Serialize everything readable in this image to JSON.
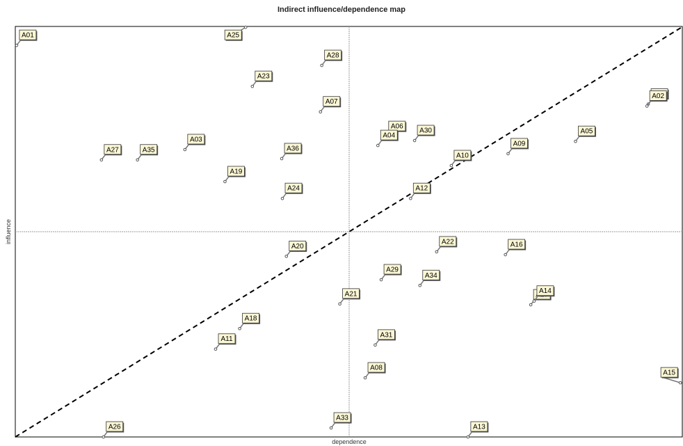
{
  "chart_data": {
    "type": "scatter",
    "title": "Indirect influence/dependence map",
    "xlabel": "dependence",
    "ylabel": "influence",
    "xlim": [
      0,
      100
    ],
    "ylim": [
      0,
      100
    ],
    "midlines": {
      "x": 50,
      "y": 50
    },
    "diagonal": true,
    "grid": false,
    "colors": {
      "axes": "#000000",
      "midline": "#999999",
      "diagonal": "#000000",
      "label_fill": "#fbf7d5",
      "point": "#555555"
    },
    "points": [
      {
        "label": "A01",
        "x": 0.2,
        "y": 95.4
      },
      {
        "label": "A25",
        "x": 34.5,
        "y": 99.8
      },
      {
        "label": "A28",
        "x": 45.9,
        "y": 90.5
      },
      {
        "label": "A23",
        "x": 35.5,
        "y": 85.4
      },
      {
        "label": "A07",
        "x": 45.7,
        "y": 79.2
      },
      {
        "label": "A32",
        "x": 94.8,
        "y": 81.1
      },
      {
        "label": "A02",
        "x": 94.6,
        "y": 80.6
      },
      {
        "label": "A06",
        "x": 55.5,
        "y": 73.2
      },
      {
        "label": "A30",
        "x": 59.8,
        "y": 72.2
      },
      {
        "label": "A04",
        "x": 54.3,
        "y": 71.0
      },
      {
        "label": "A05",
        "x": 83.9,
        "y": 72.0
      },
      {
        "label": "A09",
        "x": 73.8,
        "y": 69.0
      },
      {
        "label": "A10",
        "x": 65.3,
        "y": 66.1
      },
      {
        "label": "A27",
        "x": 12.9,
        "y": 67.5
      },
      {
        "label": "A35",
        "x": 18.3,
        "y": 67.5
      },
      {
        "label": "A03",
        "x": 25.4,
        "y": 70.0
      },
      {
        "label": "A36",
        "x": 39.9,
        "y": 67.8
      },
      {
        "label": "A19",
        "x": 31.4,
        "y": 62.2
      },
      {
        "label": "A24",
        "x": 40.0,
        "y": 58.1
      },
      {
        "label": "A12",
        "x": 59.2,
        "y": 58.1
      },
      {
        "label": "A20",
        "x": 40.6,
        "y": 44.0
      },
      {
        "label": "A22",
        "x": 63.1,
        "y": 45.1
      },
      {
        "label": "A16",
        "x": 73.4,
        "y": 44.4
      },
      {
        "label": "A34",
        "x": 60.6,
        "y": 36.9
      },
      {
        "label": "A29",
        "x": 54.8,
        "y": 38.3
      },
      {
        "label": "A21",
        "x": 48.6,
        "y": 32.4
      },
      {
        "label": "A17",
        "x": 77.2,
        "y": 32.2
      },
      {
        "label": "A14",
        "x": 77.7,
        "y": 33.1
      },
      {
        "label": "A18",
        "x": 33.6,
        "y": 26.4
      },
      {
        "label": "A11",
        "x": 30.0,
        "y": 21.4
      },
      {
        "label": "A31",
        "x": 53.9,
        "y": 22.4
      },
      {
        "label": "A08",
        "x": 52.4,
        "y": 14.4
      },
      {
        "label": "A15",
        "x": 99.6,
        "y": 13.2
      },
      {
        "label": "A26",
        "x": 13.2,
        "y": 0.0
      },
      {
        "label": "A33",
        "x": 47.3,
        "y": 2.2
      },
      {
        "label": "A13",
        "x": 67.8,
        "y": 0.0
      }
    ]
  }
}
